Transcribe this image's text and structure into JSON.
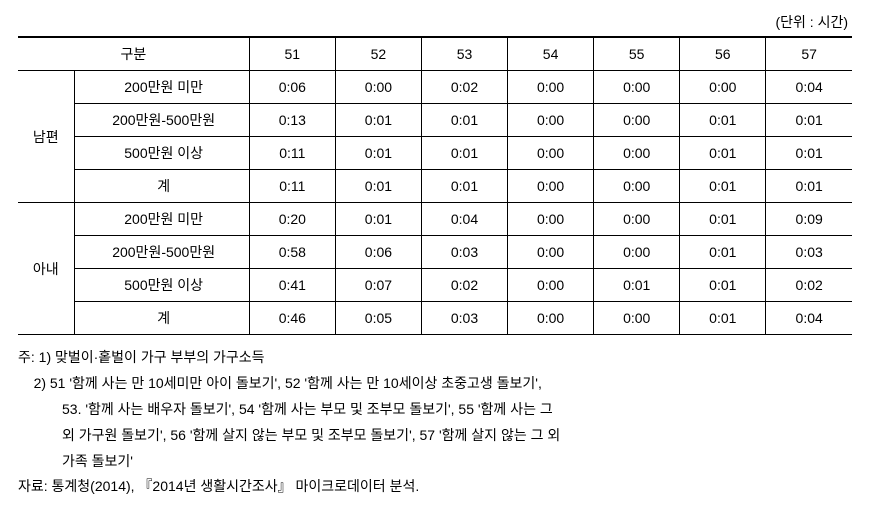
{
  "unit_label": "(단위 : 시간)",
  "table": {
    "header": {
      "category": "구분",
      "cols": [
        "51",
        "52",
        "53",
        "54",
        "55",
        "56",
        "57"
      ]
    },
    "groups": [
      {
        "name": "남편",
        "rows": [
          {
            "label": "200만원 미만",
            "vals": [
              "0:06",
              "0:00",
              "0:02",
              "0:00",
              "0:00",
              "0:00",
              "0:04"
            ]
          },
          {
            "label": "200만원-500만원",
            "vals": [
              "0:13",
              "0:01",
              "0:01",
              "0:00",
              "0:00",
              "0:01",
              "0:01"
            ]
          },
          {
            "label": "500만원 이상",
            "vals": [
              "0:11",
              "0:01",
              "0:01",
              "0:00",
              "0:00",
              "0:01",
              "0:01"
            ]
          },
          {
            "label": "계",
            "vals": [
              "0:11",
              "0:01",
              "0:01",
              "0:00",
              "0:00",
              "0:01",
              "0:01"
            ]
          }
        ]
      },
      {
        "name": "아내",
        "rows": [
          {
            "label": "200만원 미만",
            "vals": [
              "0:20",
              "0:01",
              "0:04",
              "0:00",
              "0:00",
              "0:01",
              "0:09"
            ]
          },
          {
            "label": "200만원-500만원",
            "vals": [
              "0:58",
              "0:06",
              "0:03",
              "0:00",
              "0:00",
              "0:01",
              "0:03"
            ]
          },
          {
            "label": "500만원 이상",
            "vals": [
              "0:41",
              "0:07",
              "0:02",
              "0:00",
              "0:01",
              "0:01",
              "0:02"
            ]
          },
          {
            "label": "계",
            "vals": [
              "0:46",
              "0:05",
              "0:03",
              "0:00",
              "0:00",
              "0:01",
              "0:04"
            ]
          }
        ]
      }
    ]
  },
  "notes": {
    "line1": "주: 1) 맞벌이·홑벌이 가구 부부의 가구소득",
    "line2": "2) 51 '함께 사는 만 10세미만 아이 돌보기', 52 '함께 사는 만 10세이상 초중고생 돌보기',",
    "line3": "53. '함께 사는 배우자 돌보기', 54 '함께 사는 부모 및 조부모 돌보기', 55 '함께 사는 그",
    "line4": "외 가구원 돌보기', 56 '함께 살지 않는 부모 및 조부모 돌보기', 57 '함께 살지 않는 그 외",
    "line5": "가족 돌보기'",
    "line6": "자료: 통계청(2014), 『2014년 생활시간조사』 마이크로데이터 분석."
  }
}
